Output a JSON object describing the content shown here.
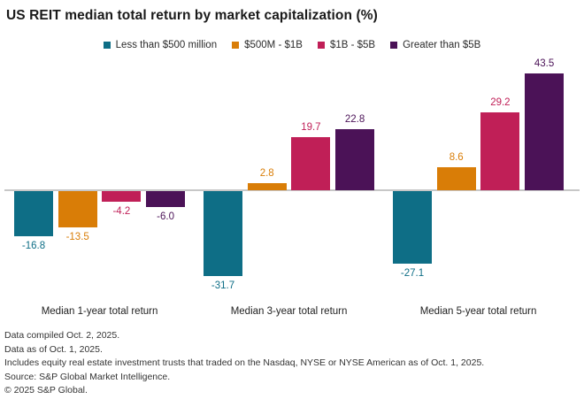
{
  "title": "US REIT median total return by market capitalization (%)",
  "chart_data": {
    "type": "bar",
    "title": "US REIT median total return by market capitalization (%)",
    "categories": [
      "Median 1-year total return",
      "Median 3-year total return",
      "Median 5-year total return"
    ],
    "series": [
      {
        "name": "Less than $500 million",
        "color": "#0e6e86",
        "values": [
          -16.8,
          -31.7,
          -27.1
        ]
      },
      {
        "name": "$500M - $1B",
        "color": "#d97d07",
        "values": [
          -13.5,
          2.8,
          8.6
        ]
      },
      {
        "name": "$1B - $5B",
        "color": "#c01f57",
        "values": [
          -4.2,
          19.7,
          29.2
        ]
      },
      {
        "name": "Greater than $5B",
        "color": "#4b1257",
        "values": [
          -6.0,
          22.8,
          43.5
        ]
      }
    ],
    "ylim": [
      -35,
      45
    ],
    "grid": false,
    "legend_position": "top",
    "data_labels": true,
    "axis_line_color": "#c7c7c7"
  },
  "footer": {
    "lines": [
      "Data compiled Oct. 2, 2025.",
      "Data as of Oct. 1, 2025.",
      "Includes equity real estate investment trusts that traded on the Nasdaq, NYSE or NYSE American as of Oct. 1, 2025.",
      "Source: S&P Global Market Intelligence.",
      "© 2025 S&P Global."
    ]
  }
}
